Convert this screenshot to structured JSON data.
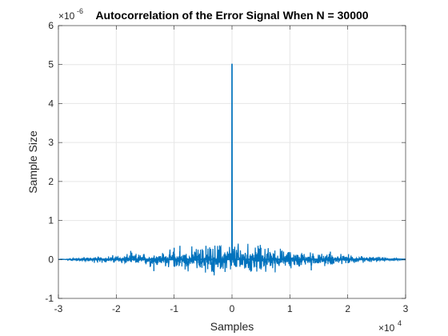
{
  "chart_data": {
    "type": "line",
    "title": "Autocorrelation of the Error Signal When N = 30000",
    "xlabel": "Samples",
    "ylabel": "Sample Size",
    "xlim": [
      -3,
      3
    ],
    "ylim": [
      -1,
      6
    ],
    "x_multiplier": {
      "base": "×10",
      "exp": "4"
    },
    "y_multiplier": {
      "base": "×10",
      "exp": "-6"
    },
    "x_ticks": [
      -3,
      -2,
      -1,
      0,
      1,
      2,
      3
    ],
    "x_tick_labels": [
      "-3",
      "-2",
      "-1",
      "0",
      "1",
      "2",
      "3"
    ],
    "y_ticks": [
      -1,
      0,
      1,
      2,
      3,
      4,
      5,
      6
    ],
    "y_tick_labels": [
      "-1",
      "0",
      "1",
      "2",
      "3",
      "4",
      "5",
      "6"
    ],
    "grid": true,
    "series": [
      {
        "color": "#0072BD",
        "note": "noise-like autocorrelation sequence; peak value at lag 0, envelope shrinks toward edges",
        "peak": {
          "x": 0,
          "y": 5.02
        },
        "envelope": [
          [
            -3,
            0.0
          ],
          [
            -2.75,
            0.05
          ],
          [
            -2,
            0.15
          ],
          [
            -1,
            0.3
          ],
          [
            -0.5,
            0.45
          ],
          [
            0,
            0.6
          ],
          [
            0.5,
            0.45
          ],
          [
            1,
            0.3
          ],
          [
            2,
            0.15
          ],
          [
            2.75,
            0.05
          ],
          [
            3,
            0.0
          ]
        ],
        "notable_spikes": [
          {
            "x": -1.75,
            "y": 0.22
          },
          {
            "x": -1.0,
            "y": 0.3
          },
          {
            "x": -0.9,
            "y": 0.35
          },
          {
            "x": -0.45,
            "y": 0.35
          },
          {
            "x": -0.42,
            "y": -0.25
          },
          {
            "x": 0.45,
            "y": 0.35
          },
          {
            "x": 0.5,
            "y": 0.3
          },
          {
            "x": 0.42,
            "y": -0.2
          },
          {
            "x": 1.37,
            "y": -0.28
          },
          {
            "x": 1.7,
            "y": 0.2
          },
          {
            "x": -1.35,
            "y": -0.3
          }
        ]
      }
    ]
  }
}
